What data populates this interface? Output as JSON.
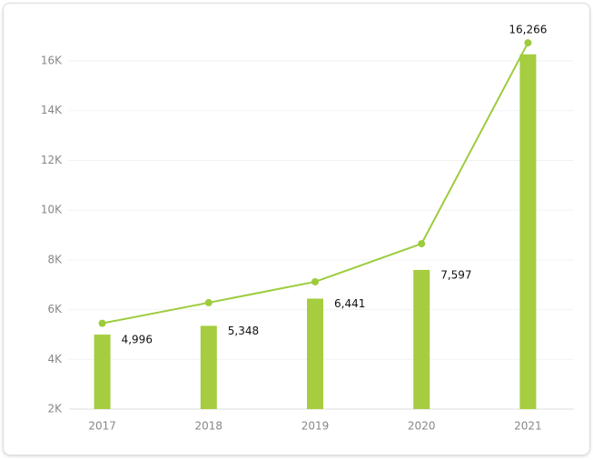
{
  "chart_data": {
    "type": "bar-line",
    "categories": [
      "2017",
      "2018",
      "2019",
      "2020",
      "2021"
    ],
    "series": [
      {
        "type": "bar",
        "color": "#a5cd3f",
        "values": [
          4996,
          5348,
          6441,
          7597,
          16266
        ],
        "value_labels": [
          "4,996",
          "5,348",
          "6,441",
          "7,597",
          "16,266"
        ]
      },
      {
        "type": "line",
        "color": "#9ccc3c",
        "values": [
          5450,
          6280,
          7120,
          8650,
          16730
        ]
      }
    ],
    "ylim": [
      2000,
      17500
    ],
    "yticks": [
      {
        "value": 2000,
        "label": "2K"
      },
      {
        "value": 4000,
        "label": "4K"
      },
      {
        "value": 6000,
        "label": "6K"
      },
      {
        "value": 8000,
        "label": "8K"
      },
      {
        "value": 10000,
        "label": "10K"
      },
      {
        "value": 12000,
        "label": "12K"
      },
      {
        "value": 14000,
        "label": "14K"
      },
      {
        "value": 16000,
        "label": "16K"
      }
    ],
    "grid": true
  }
}
